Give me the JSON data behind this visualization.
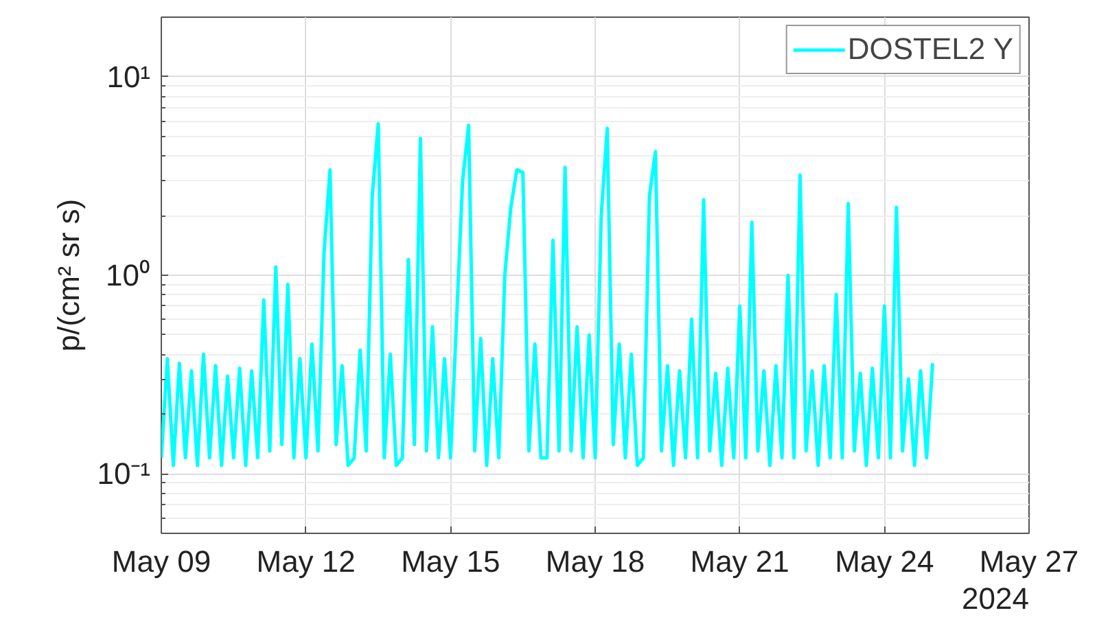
{
  "chart_data": {
    "type": "line",
    "ylabel": "p/(cm² sr s)",
    "annotations": [
      "2024"
    ],
    "log": "y",
    "grid": true,
    "legend": "top right",
    "line_style": "solid",
    "xlim": [
      "2024-05-09",
      "2024-05-27"
    ],
    "xticks": [
      {
        "value": "2024-05-09",
        "label": "May 09"
      },
      {
        "value": "2024-05-12",
        "label": "May 12"
      },
      {
        "value": "2024-05-15",
        "label": "May 15"
      },
      {
        "value": "2024-05-18",
        "label": "May 18"
      },
      {
        "value": "2024-05-21",
        "label": "May 21"
      },
      {
        "value": "2024-05-24",
        "label": "May 24"
      },
      {
        "value": "2024-05-27",
        "label": "May 27"
      }
    ],
    "ylim": [
      0.05,
      20
    ],
    "yticks": [
      {
        "value": 0.1,
        "label": "10⁻¹"
      },
      {
        "value": 1,
        "label": "10⁰"
      },
      {
        "value": 10,
        "label": "10¹"
      }
    ],
    "x": [
      "2024-05-09T00:00",
      "2024-05-09T03:00",
      "2024-05-09T06:00",
      "2024-05-09T09:00",
      "2024-05-09T12:00",
      "2024-05-09T15:00",
      "2024-05-09T18:00",
      "2024-05-09T21:00",
      "2024-05-10T00:00",
      "2024-05-10T03:00",
      "2024-05-10T06:00",
      "2024-05-10T09:00",
      "2024-05-10T12:00",
      "2024-05-10T15:00",
      "2024-05-10T18:00",
      "2024-05-10T21:00",
      "2024-05-11T00:00",
      "2024-05-11T03:00",
      "2024-05-11T06:00",
      "2024-05-11T09:00",
      "2024-05-11T12:00",
      "2024-05-11T15:00",
      "2024-05-11T18:00",
      "2024-05-11T21:00",
      "2024-05-12T00:00",
      "2024-05-12T03:00",
      "2024-05-12T06:00",
      "2024-05-12T09:00",
      "2024-05-12T12:00",
      "2024-05-12T15:00",
      "2024-05-12T18:00",
      "2024-05-12T21:00",
      "2024-05-13T00:00",
      "2024-05-13T03:00",
      "2024-05-13T06:00",
      "2024-05-13T09:00",
      "2024-05-13T12:00",
      "2024-05-13T15:00",
      "2024-05-13T18:00",
      "2024-05-13T21:00",
      "2024-05-14T00:00",
      "2024-05-14T03:00",
      "2024-05-14T06:00",
      "2024-05-14T09:00",
      "2024-05-14T12:00",
      "2024-05-14T15:00",
      "2024-05-14T18:00",
      "2024-05-14T21:00",
      "2024-05-15T00:00",
      "2024-05-15T03:00",
      "2024-05-15T06:00",
      "2024-05-15T09:00",
      "2024-05-15T12:00",
      "2024-05-15T15:00",
      "2024-05-15T18:00",
      "2024-05-15T21:00",
      "2024-05-16T00:00",
      "2024-05-16T03:00",
      "2024-05-16T06:00",
      "2024-05-16T09:00",
      "2024-05-16T12:00",
      "2024-05-16T15:00",
      "2024-05-16T18:00",
      "2024-05-16T21:00",
      "2024-05-17T00:00",
      "2024-05-17T03:00",
      "2024-05-17T06:00",
      "2024-05-17T09:00",
      "2024-05-17T12:00",
      "2024-05-17T15:00",
      "2024-05-17T18:00",
      "2024-05-17T21:00",
      "2024-05-18T00:00",
      "2024-05-18T03:00",
      "2024-05-18T06:00",
      "2024-05-18T09:00",
      "2024-05-18T12:00",
      "2024-05-18T15:00",
      "2024-05-18T18:00",
      "2024-05-18T21:00",
      "2024-05-19T00:00",
      "2024-05-19T03:00",
      "2024-05-19T06:00",
      "2024-05-19T09:00",
      "2024-05-19T12:00",
      "2024-05-19T15:00",
      "2024-05-19T18:00",
      "2024-05-19T21:00",
      "2024-05-20T00:00",
      "2024-05-20T03:00",
      "2024-05-20T06:00",
      "2024-05-20T09:00",
      "2024-05-20T12:00",
      "2024-05-20T15:00",
      "2024-05-20T18:00",
      "2024-05-20T21:00",
      "2024-05-21T00:00",
      "2024-05-21T03:00",
      "2024-05-21T06:00",
      "2024-05-21T09:00",
      "2024-05-21T12:00",
      "2024-05-21T15:00",
      "2024-05-21T18:00",
      "2024-05-21T21:00",
      "2024-05-22T00:00",
      "2024-05-22T03:00",
      "2024-05-22T06:00",
      "2024-05-22T09:00",
      "2024-05-22T12:00",
      "2024-05-22T15:00",
      "2024-05-22T18:00",
      "2024-05-22T21:00",
      "2024-05-23T00:00",
      "2024-05-23T03:00",
      "2024-05-23T06:00",
      "2024-05-23T09:00",
      "2024-05-23T12:00",
      "2024-05-23T15:00",
      "2024-05-23T18:00",
      "2024-05-23T21:00",
      "2024-05-24T00:00",
      "2024-05-24T03:00",
      "2024-05-24T06:00",
      "2024-05-24T09:00",
      "2024-05-24T12:00",
      "2024-05-24T15:00",
      "2024-05-24T18:00",
      "2024-05-24T21:00",
      "2024-05-25T00:00"
    ],
    "series": [
      {
        "name": "DOSTEL2 Y",
        "color": "#00ffff",
        "values": [
          0.12,
          0.38,
          0.11,
          0.36,
          0.12,
          0.33,
          0.11,
          0.4,
          0.12,
          0.35,
          0.11,
          0.31,
          0.12,
          0.34,
          0.11,
          0.33,
          0.12,
          0.75,
          0.13,
          1.1,
          0.14,
          0.9,
          0.12,
          0.38,
          0.12,
          0.45,
          0.13,
          1.3,
          3.4,
          0.14,
          0.35,
          0.11,
          0.12,
          0.42,
          0.13,
          2.5,
          5.8,
          0.12,
          0.4,
          0.11,
          0.12,
          1.2,
          0.14,
          4.9,
          0.13,
          0.55,
          0.12,
          0.38,
          0.12,
          0.6,
          3.0,
          5.7,
          0.13,
          0.48,
          0.11,
          0.38,
          0.12,
          1.0,
          2.2,
          3.4,
          3.3,
          0.13,
          0.45,
          0.12,
          0.12,
          1.5,
          0.13,
          3.5,
          0.13,
          0.55,
          0.12,
          0.5,
          0.12,
          2.0,
          5.5,
          0.14,
          0.45,
          0.12,
          0.4,
          0.11,
          0.12,
          2.5,
          4.2,
          0.13,
          0.35,
          0.11,
          0.33,
          0.12,
          0.6,
          0.12,
          2.4,
          0.13,
          0.32,
          0.11,
          0.34,
          0.12,
          0.7,
          0.12,
          1.85,
          0.13,
          0.33,
          0.11,
          0.35,
          0.12,
          1.0,
          0.12,
          3.2,
          0.13,
          0.33,
          0.11,
          0.35,
          0.12,
          0.8,
          0.12,
          2.3,
          0.13,
          0.32,
          0.11,
          0.34,
          0.12,
          0.7,
          0.12,
          2.2,
          0.13,
          0.3,
          0.11,
          0.33,
          0.12,
          0.36
        ]
      }
    ]
  }
}
